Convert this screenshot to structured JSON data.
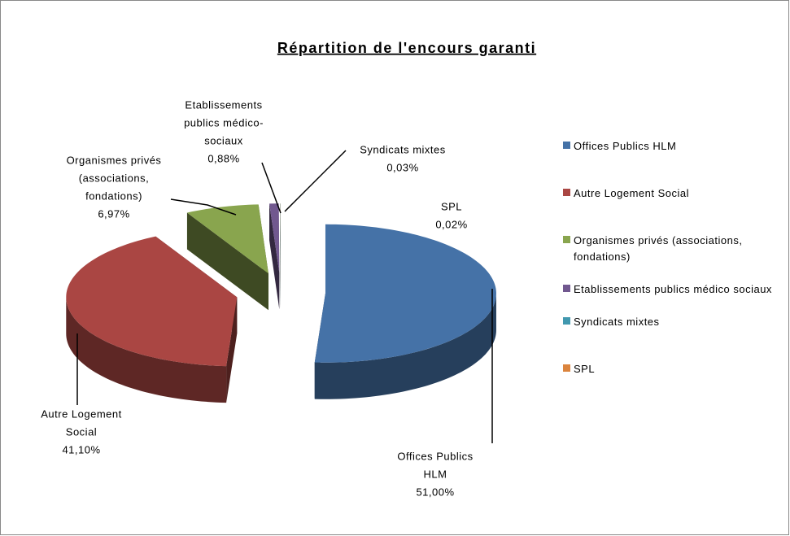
{
  "chart_data": {
    "type": "pie3d",
    "title": "Répartition de l'encours garanti",
    "categories": [
      "Offices Publics HLM",
      "Autre Logement Social",
      "Organismes privés (associations, fondations)",
      "Etablissements publics médico sociaux",
      "Syndicats mixtes",
      "SPL"
    ],
    "values": [
      51,
      41.1,
      6.97,
      0.88,
      0.03,
      0.02
    ],
    "value_labels": [
      "51,00%",
      "41,10%",
      "6,97%",
      "0,88%",
      "0,03%",
      "0,02%"
    ],
    "label_lines": [
      [
        "Offices Publics",
        "HLM"
      ],
      [
        "Autre Logement",
        "Social"
      ],
      [
        "Organismes privés",
        "(associations,",
        "fondations)"
      ],
      [
        "Etablissements",
        "publics médico-",
        "sociaux"
      ],
      [
        "Syndicats mixtes"
      ],
      [
        "SPL"
      ]
    ],
    "colors": [
      "#4572a7",
      "#aa4643",
      "#89a54e",
      "#71588f",
      "#4198af",
      "#db843d"
    ],
    "legend": "right"
  }
}
